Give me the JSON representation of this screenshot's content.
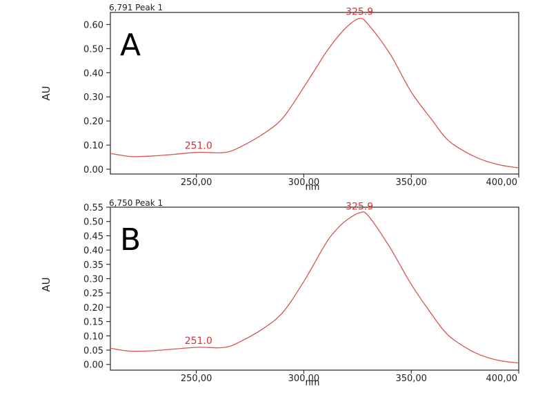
{
  "colors": {
    "curve": "#d9534f",
    "label": "#d62f2f",
    "frame": "#333333",
    "background": "#ffffff"
  },
  "chart_data": [
    {
      "type": "line",
      "panel_letter": "A",
      "header": "6,791 Peak 1",
      "xlabel": "nm",
      "ylabel": "AU",
      "xlim": [
        210,
        400
      ],
      "ylim": [
        -0.02,
        0.65
      ],
      "x_ticks": [
        250,
        300,
        350,
        400
      ],
      "x_tick_labels": [
        "250,00",
        "300,00",
        "350,00",
        "400,00"
      ],
      "y_ticks": [
        0.0,
        0.1,
        0.2,
        0.3,
        0.4,
        0.5,
        0.6
      ],
      "y_tick_labels": [
        "0.00",
        "0.10",
        "0.20",
        "0.30",
        "0.40",
        "0.50",
        "0.60"
      ],
      "peak_labels": [
        {
          "text": "251.0",
          "x": 251.0,
          "y": 0.07
        },
        {
          "text": "325.9",
          "x": 325.9,
          "y": 0.625
        }
      ],
      "x": [
        210,
        215,
        220,
        230,
        240,
        251,
        260,
        265,
        270,
        280,
        290,
        300,
        310,
        315,
        320,
        325.9,
        330,
        340,
        350,
        360,
        365,
        370,
        380,
        390,
        400
      ],
      "y": [
        0.065,
        0.058,
        0.052,
        0.055,
        0.062,
        0.07,
        0.068,
        0.072,
        0.09,
        0.14,
        0.21,
        0.34,
        0.48,
        0.54,
        0.59,
        0.625,
        0.6,
        0.48,
        0.32,
        0.2,
        0.14,
        0.1,
        0.05,
        0.02,
        0.005
      ]
    },
    {
      "type": "line",
      "panel_letter": "B",
      "header": "6,750 Peak 1",
      "xlabel": "nm",
      "ylabel": "AU",
      "xlim": [
        210,
        400
      ],
      "ylim": [
        -0.02,
        0.55
      ],
      "x_ticks": [
        250,
        300,
        350,
        400
      ],
      "x_tick_labels": [
        "250,00",
        "300,00",
        "350,00",
        "400,00"
      ],
      "y_ticks": [
        0.0,
        0.05,
        0.1,
        0.15,
        0.2,
        0.25,
        0.3,
        0.35,
        0.4,
        0.45,
        0.5,
        0.55
      ],
      "y_tick_labels": [
        "0.00",
        "0.05",
        "0.10",
        "0.15",
        "0.20",
        "0.25",
        "0.30",
        "0.35",
        "0.40",
        "0.45",
        "0.50",
        "0.55"
      ],
      "peak_labels": [
        {
          "text": "251.0",
          "x": 251.0,
          "y": 0.06
        },
        {
          "text": "325.9",
          "x": 325.9,
          "y": 0.53
        }
      ],
      "x": [
        210,
        215,
        220,
        230,
        240,
        251,
        260,
        265,
        270,
        280,
        290,
        300,
        310,
        315,
        320,
        325.9,
        330,
        340,
        350,
        360,
        365,
        370,
        380,
        390,
        400
      ],
      "y": [
        0.057,
        0.05,
        0.046,
        0.048,
        0.054,
        0.06,
        0.058,
        0.062,
        0.078,
        0.12,
        0.18,
        0.29,
        0.42,
        0.47,
        0.505,
        0.53,
        0.52,
        0.41,
        0.28,
        0.17,
        0.12,
        0.085,
        0.04,
        0.015,
        0.005
      ]
    }
  ]
}
